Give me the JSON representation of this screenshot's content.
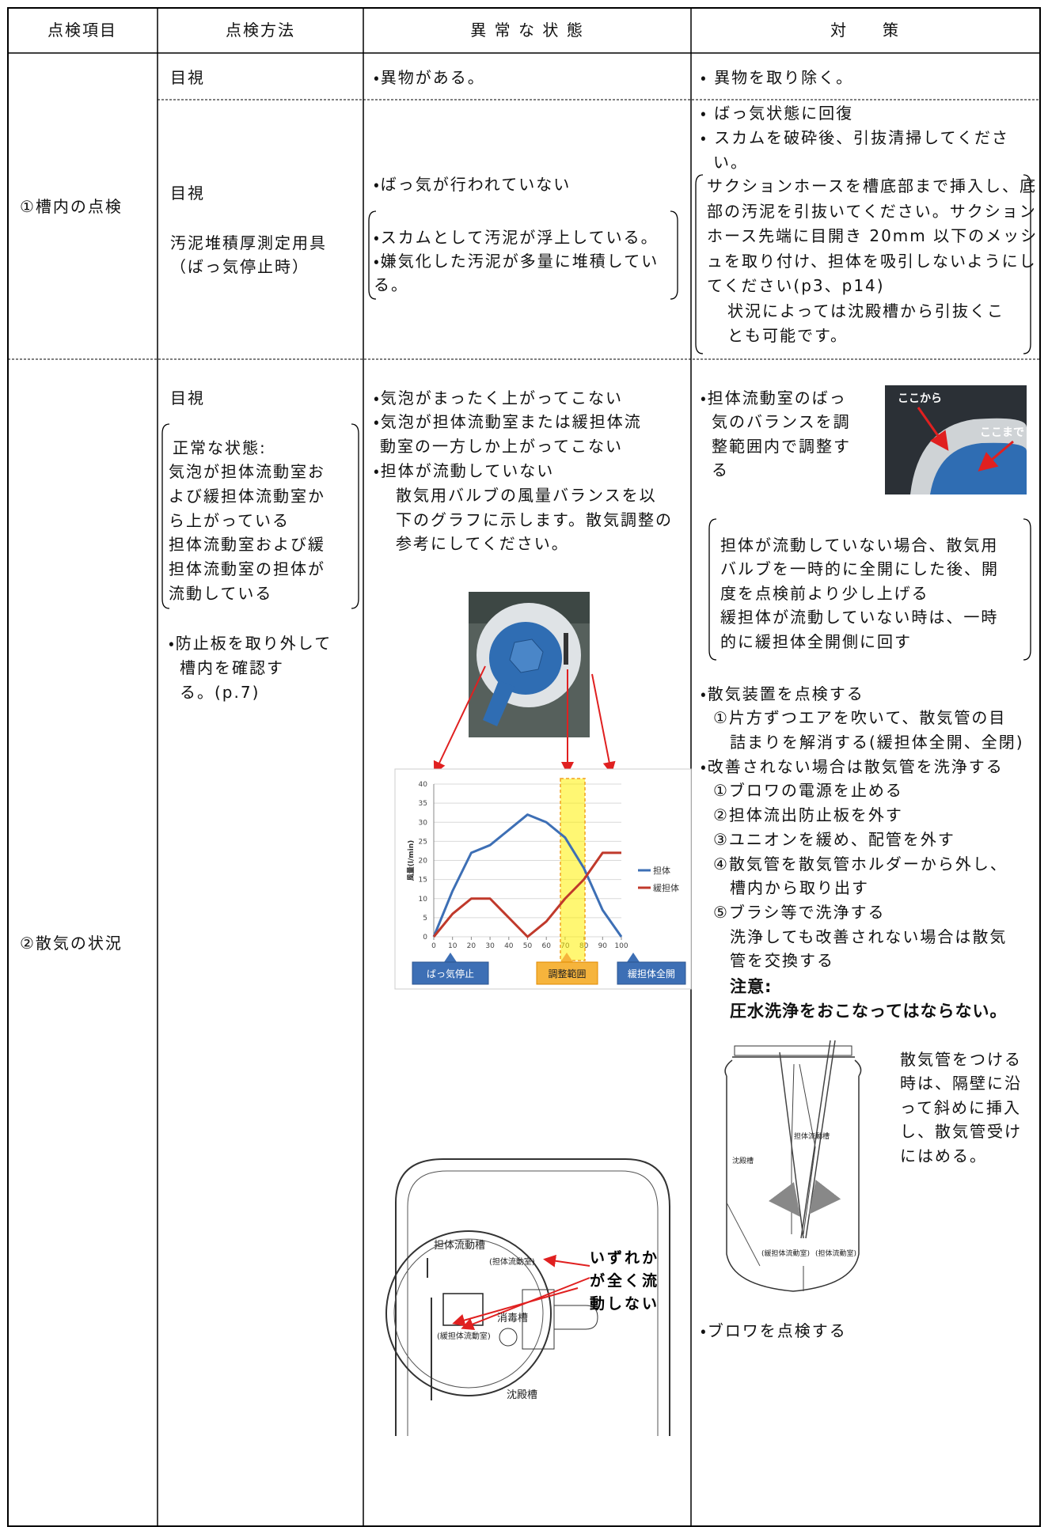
{
  "header": [
    "点検項目",
    "点検方法",
    "異 常 な 状 態",
    "対　　策"
  ],
  "row1": {
    "item": "①槽内の点検",
    "a": {
      "method": "目視",
      "condition": "・異物がある。",
      "action": "・ 異物を取り除く。"
    },
    "b": {
      "method": "目視",
      "method_tool": [
        "汚泥堆積厚測定用具",
        "（ばっ気停止時）"
      ],
      "condition": "・ばっ気が行われていない",
      "condition_note": [
        "・スカムとして汚泥が浮上している。",
        "・嫌気化した汚泥が多量に堆積してい",
        "る。"
      ],
      "action": [
        "・ ばっ気状態に回復",
        "・ スカムを破砕後、引抜清掃してくださ",
        "い。"
      ],
      "action_note": [
        "サクションホースを槽底部まで挿入し、底",
        "部の汚泥を引抜いてください。サクション",
        "ホース先端に目開き 20mm 以下のメッシ",
        "ュを取り付け、担体を吸引しないようにし",
        "てください(p3、p14)",
        "状況によっては沈殿槽から引抜くこ",
        "とも可能です。"
      ]
    }
  },
  "row2": {
    "item": "②散気の状況",
    "method": "目視",
    "method_note": [
      "正常な状態:",
      "気泡が担体流動室お",
      "よび緩担体流動室か",
      "ら上がっている",
      "担体流動室および緩",
      "担体流動室の担体が",
      "流動している"
    ],
    "method_extra": [
      "・防止板を取り外して",
      "槽内を確認す",
      "る。(p.7)"
    ],
    "condition": [
      "・気泡がまったく上がってこない",
      "・気泡が担体流動室または緩担体流",
      "動室の一方しか上がってこない",
      "・担体が流動していない",
      "散気用バルブの風量バランスを以",
      "下のグラフに示します。散気調整の",
      "参考にしてください。"
    ],
    "chart": {
      "type": "line",
      "x": [
        0,
        10,
        20,
        30,
        40,
        50,
        60,
        70,
        80,
        90,
        100
      ],
      "xlim": [
        0,
        100
      ],
      "xticks": [
        0,
        10,
        20,
        30,
        40,
        50,
        60,
        70,
        80,
        90,
        100
      ],
      "ylim": [
        0,
        40
      ],
      "yticks": [
        0,
        5,
        10,
        15,
        20,
        25,
        30,
        35,
        40
      ],
      "ylabel": "風量(l/min)",
      "grid": true,
      "series": [
        {
          "name": "担体",
          "color": "#3d6fb5",
          "values": [
            0,
            12,
            22,
            24,
            28,
            32,
            30,
            26,
            18,
            7,
            0
          ]
        },
        {
          "name": "緩担体",
          "color": "#c0392b",
          "values": [
            0,
            6,
            10,
            10,
            5,
            0,
            4,
            10,
            15,
            22,
            22
          ]
        }
      ],
      "annotations": [
        "ばっ気停止",
        "調整範囲",
        "緩担体全開"
      ]
    },
    "diagram_top": {
      "labels": [
        "担体流動槽",
        "(担体流動室)",
        "消毒槽",
        "(緩担体流動室)",
        "沈殿槽"
      ],
      "callout": [
        "いずれか",
        "が全く流",
        "動しない"
      ]
    },
    "action": [
      "・担体流動室のばっ",
      "気のバランスを調",
      "整範囲内で調整す",
      "る"
    ],
    "photo_labels": [
      "ここから",
      "ここまで"
    ],
    "action_note": [
      "担体が流動していない場合、散気用",
      "バルブを一時的に全開にした後、開",
      "度を点検前より少し上げる",
      "緩担体が流動していない時は、一時",
      "的に緩担体全開側に回す"
    ],
    "action_steps": [
      "・散気装置を点検する",
      "①片方ずつエアを吹いて、散気管の目",
      "詰まりを解消する(緩担体全開、全閉)",
      "・改善されない場合は散気管を洗浄する",
      "①ブロワの電源を止める",
      "②担体流出防止板を外す",
      "③ユニオンを緩め、配管を外す",
      "④散気管を散気管ホルダーから外し、",
      "槽内から取り出す",
      "⑤ブラシ等で洗浄する",
      "洗浄しても改善されない場合は散気",
      "管を交換する"
    ],
    "action_warning": [
      "注意:",
      "圧水洗浄をおこなってはならない。"
    ],
    "diagram_side": {
      "labels": [
        "担体流動槽",
        "沈殿槽",
        "(緩担体流動室)",
        "(担体流動室)"
      ],
      "caption": [
        "散気管をつける",
        "時は、隔壁に沿",
        "って斜めに挿入",
        "し、散気管受け",
        "にはめる。"
      ]
    },
    "action_last": "・ブロワを点検する"
  }
}
